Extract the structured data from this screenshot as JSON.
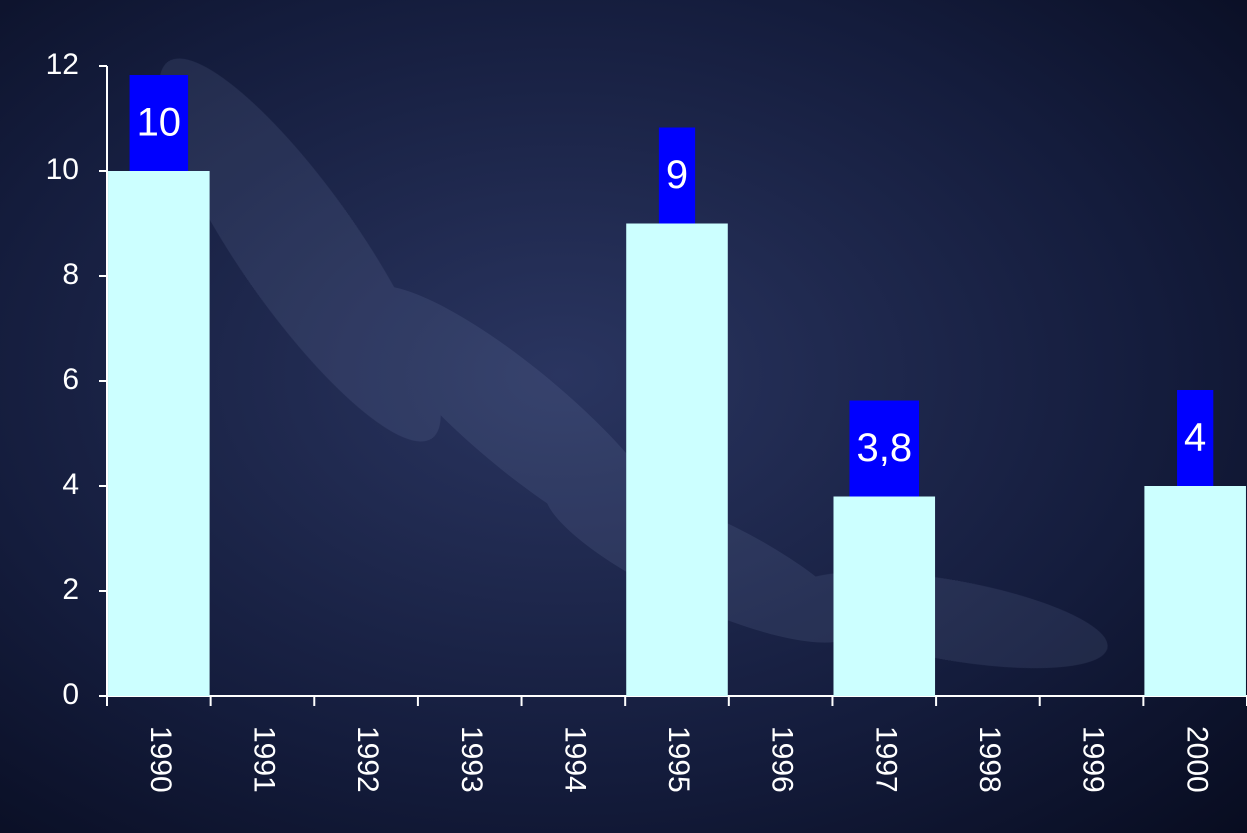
{
  "chart_data": {
    "type": "bar",
    "categories": [
      "1990",
      "1991",
      "1992",
      "1993",
      "1994",
      "1995",
      "1996",
      "1997",
      "1998",
      "1999",
      "2000"
    ],
    "values": [
      10,
      null,
      null,
      null,
      null,
      9,
      null,
      3.8,
      null,
      null,
      4
    ],
    "value_labels": [
      "10",
      null,
      null,
      null,
      null,
      "9",
      null,
      "3,8",
      null,
      null,
      "4"
    ],
    "color": "#ccffff",
    "label_color": "#0000ff",
    "ylim": [
      0,
      12
    ],
    "yticks": [
      0,
      2,
      4,
      6,
      8,
      10,
      12
    ],
    "grid": false
  }
}
